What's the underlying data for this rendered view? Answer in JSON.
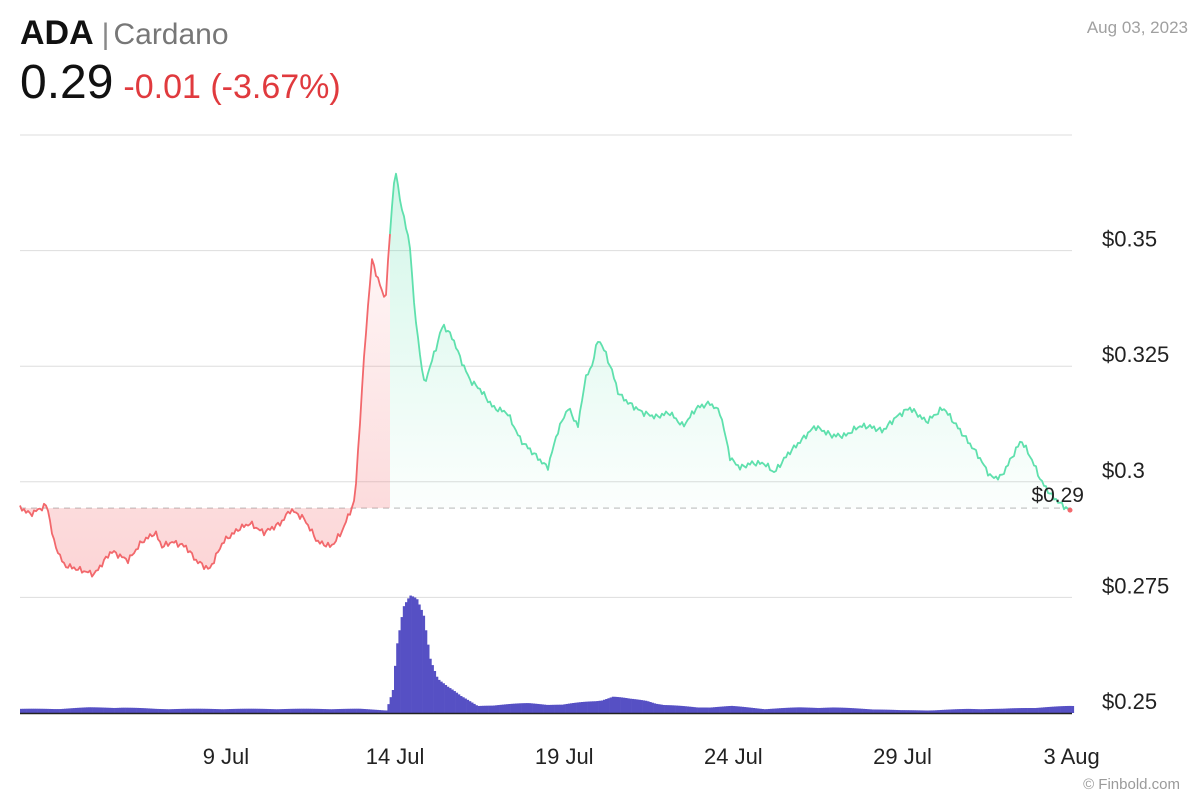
{
  "header": {
    "symbol": "ADA",
    "separator": "|",
    "name": "Cardano",
    "price": "0.29",
    "change": "-0.01 (-3.67%)",
    "date": "Aug 03, 2023"
  },
  "credit": "© Finbold.com",
  "colors": {
    "up_line": "#5fe0ad",
    "down_line": "#f2686c",
    "volume": "#5650c4",
    "grid": "#dddddd",
    "text": "#222222"
  },
  "chart_data": {
    "type": "line",
    "title": "ADA | Cardano",
    "reference_price": 0.2943,
    "last_price_label": "$0.29",
    "ylim": [
      0.25,
      0.375
    ],
    "y_ticks": [
      {
        "value": 0.35,
        "label": "$0.35"
      },
      {
        "value": 0.325,
        "label": "$0.325"
      },
      {
        "value": 0.3,
        "label": "$0.3"
      },
      {
        "value": 0.275,
        "label": "$0.275"
      },
      {
        "value": 0.25,
        "label": "$0.25"
      }
    ],
    "x_range": [
      3.0,
      34.1
    ],
    "x_ticks": [
      {
        "value": 9,
        "label": "9 Jul"
      },
      {
        "value": 14,
        "label": "14 Jul"
      },
      {
        "value": 19,
        "label": "19 Jul"
      },
      {
        "value": 24,
        "label": "24 Jul"
      },
      {
        "value": 29,
        "label": "29 Jul"
      },
      {
        "value": 34,
        "label": "3 Aug"
      }
    ],
    "series": [
      {
        "x": [
          3.0,
          3.3,
          3.8,
          4.0,
          4.3,
          5.2,
          5.7,
          6.2,
          6.6,
          7.0,
          7.2,
          7.5,
          7.9,
          8.2,
          8.6,
          9.0,
          9.5,
          9.8,
          10.2,
          10.7,
          11.0,
          11.4,
          11.8,
          12.2,
          12.5,
          12.9,
          13.2,
          13.4,
          13.8,
          14.0,
          14.1,
          14.2,
          14.3,
          14.55,
          14.65,
          14.8,
          14.95,
          15.3,
          15.5,
          15.8,
          16.0,
          16.3,
          16.6,
          17.0,
          17.4,
          17.8,
          18.2,
          18.6,
          18.9,
          19.2,
          19.5,
          19.7,
          19.9,
          20.1,
          20.3,
          20.5,
          20.7,
          21.0,
          21.4,
          21.8,
          22.2,
          22.6,
          23.0,
          23.4,
          23.7,
          24.0,
          24.3,
          24.6,
          25.0,
          25.3,
          25.7,
          26.1,
          26.5,
          27.0,
          27.4,
          27.8,
          28.1,
          28.5,
          28.9,
          29.3,
          29.8,
          30.3,
          30.6,
          30.9,
          31.3,
          31.7,
          32.0,
          32.3,
          32.6,
          32.9,
          33.2,
          33.5,
          33.8,
          34.1
        ],
        "y": [
          0.2945,
          0.293,
          0.295,
          0.287,
          0.282,
          0.28,
          0.285,
          0.283,
          0.287,
          0.289,
          0.286,
          0.287,
          0.286,
          0.283,
          0.281,
          0.287,
          0.29,
          0.291,
          0.289,
          0.291,
          0.294,
          0.292,
          0.287,
          0.286,
          0.289,
          0.296,
          0.33,
          0.348,
          0.339,
          0.36,
          0.368,
          0.362,
          0.359,
          0.35,
          0.338,
          0.329,
          0.321,
          0.329,
          0.334,
          0.331,
          0.327,
          0.322,
          0.32,
          0.316,
          0.315,
          0.309,
          0.306,
          0.303,
          0.311,
          0.316,
          0.312,
          0.322,
          0.325,
          0.331,
          0.328,
          0.324,
          0.319,
          0.317,
          0.315,
          0.314,
          0.315,
          0.312,
          0.316,
          0.317,
          0.315,
          0.305,
          0.303,
          0.304,
          0.304,
          0.302,
          0.306,
          0.309,
          0.312,
          0.31,
          0.31,
          0.312,
          0.312,
          0.311,
          0.314,
          0.316,
          0.313,
          0.316,
          0.313,
          0.31,
          0.306,
          0.301,
          0.301,
          0.305,
          0.309,
          0.305,
          0.3,
          0.297,
          0.295,
          0.2935
        ]
      },
      {
        "name": "Volume",
        "x": [
          3.0,
          4.0,
          5.0,
          6.0,
          7.0,
          8.0,
          9.0,
          10.0,
          11.0,
          12.0,
          13.0,
          13.8,
          14.0,
          14.1,
          14.3,
          14.5,
          14.7,
          14.9,
          15.1,
          15.3,
          15.6,
          16.0,
          16.5,
          17.0,
          18.0,
          19.0,
          20.0,
          20.5,
          21.0,
          21.5,
          22.0,
          23.0,
          24.0,
          25.0,
          26.0,
          27.0,
          28.0,
          29.0,
          30.0,
          31.0,
          32.0,
          33.0,
          34.0
        ],
        "values": [
          3,
          3,
          4,
          4,
          3,
          3,
          3,
          3,
          3,
          3,
          3,
          2,
          18,
          48,
          75,
          82,
          80,
          70,
          40,
          28,
          20,
          12,
          5,
          6,
          7,
          6,
          9,
          12,
          10,
          9,
          6,
          4,
          5,
          3,
          4,
          4,
          3,
          2,
          2,
          3,
          3,
          4,
          5
        ]
      }
    ]
  }
}
